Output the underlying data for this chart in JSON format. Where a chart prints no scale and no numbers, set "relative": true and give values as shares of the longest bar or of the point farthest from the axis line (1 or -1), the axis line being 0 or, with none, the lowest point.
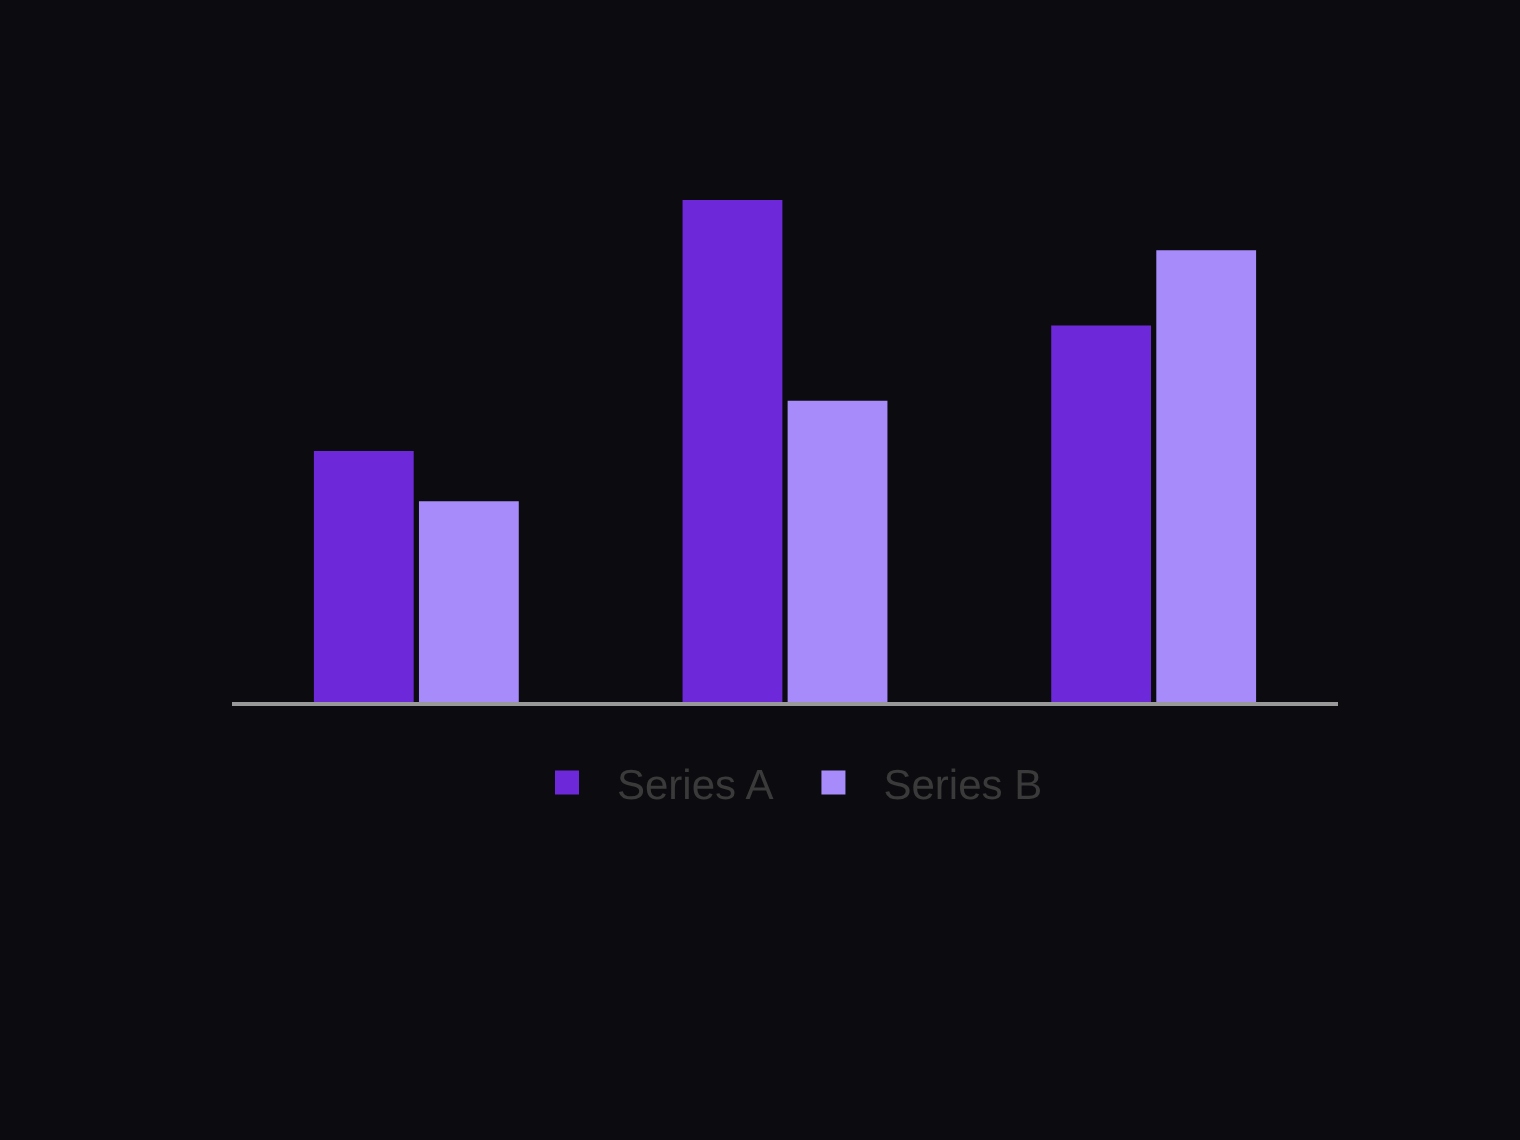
{
  "chart_data": {
    "type": "bar",
    "relative": true,
    "categories": [
      null,
      null,
      null
    ],
    "series": [
      {
        "name": "Series A",
        "color": "#6d28d9",
        "values": [
          0.5,
          1,
          0.75
        ]
      },
      {
        "name": "Series B",
        "color": "#a78bfa",
        "values": [
          0.4,
          0.6,
          0.9
        ]
      }
    ],
    "legend": "bottom"
  }
}
